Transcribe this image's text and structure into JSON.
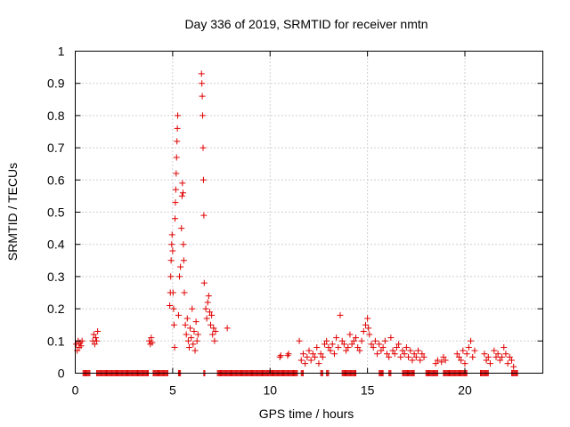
{
  "chart_data": {
    "type": "scatter",
    "title": "Day 336 of 2019, SRMTID for receiver nmtn",
    "xlabel": "GPS time / hours",
    "ylabel": "SRMTID / TECUs",
    "xlim": [
      0,
      24
    ],
    "ylim": [
      0,
      1
    ],
    "xticks": [
      "0",
      "5",
      "10",
      "15",
      "20"
    ],
    "xtick_values": [
      0,
      5,
      10,
      15,
      20
    ],
    "yticks": [
      "0",
      "0.1",
      "0.2",
      "0.3",
      "0.4",
      "0.5",
      "0.6",
      "0.7",
      "0.8",
      "0.9",
      "1"
    ],
    "ytick_values": [
      0,
      0.1,
      0.2,
      0.3,
      0.4,
      0.5,
      0.6,
      0.7,
      0.8,
      0.9,
      1
    ],
    "grid": true,
    "marker": "+",
    "color": "#e00000",
    "series": [
      {
        "name": "SRMTID",
        "points": [
          [
            0.05,
            0.09
          ],
          [
            0.1,
            0.07
          ],
          [
            0.15,
            0.1
          ],
          [
            0.2,
            0.08
          ],
          [
            0.25,
            0.095
          ],
          [
            0.3,
            0.085
          ],
          [
            0.35,
            0.1
          ],
          [
            0.9,
            0.1
          ],
          [
            0.95,
            0.12
          ],
          [
            1.0,
            0.09
          ],
          [
            1.05,
            0.11
          ],
          [
            1.1,
            0.1
          ],
          [
            1.15,
            0.13
          ],
          [
            3.8,
            0.1
          ],
          [
            3.85,
            0.09
          ],
          [
            3.9,
            0.11
          ],
          [
            3.95,
            0.095
          ],
          [
            4.85,
            0.21
          ],
          [
            4.88,
            0.25
          ],
          [
            4.9,
            0.3
          ],
          [
            4.92,
            0.35
          ],
          [
            4.95,
            0.4
          ],
          [
            4.97,
            0.43
          ],
          [
            5.0,
            0.38
          ],
          [
            5.02,
            0.25
          ],
          [
            5.05,
            0.2
          ],
          [
            5.07,
            0.15
          ],
          [
            5.1,
            0.08
          ],
          [
            5.12,
            0.48
          ],
          [
            5.14,
            0.53
          ],
          [
            5.16,
            0.57
          ],
          [
            5.18,
            0.62
          ],
          [
            5.2,
            0.67
          ],
          [
            5.22,
            0.72
          ],
          [
            5.24,
            0.76
          ],
          [
            5.26,
            0.8
          ],
          [
            5.3,
            0.18
          ],
          [
            5.35,
            0.3
          ],
          [
            5.4,
            0.33
          ],
          [
            5.45,
            0.45
          ],
          [
            5.48,
            0.55
          ],
          [
            5.5,
            0.59
          ],
          [
            5.53,
            0.56
          ],
          [
            5.55,
            0.4
          ],
          [
            5.57,
            0.35
          ],
          [
            5.6,
            0.25
          ],
          [
            5.65,
            0.15
          ],
          [
            5.7,
            0.12
          ],
          [
            5.75,
            0.17
          ],
          [
            5.8,
            0.1
          ],
          [
            5.85,
            0.08
          ],
          [
            5.9,
            0.14
          ],
          [
            5.95,
            0.11
          ],
          [
            6.0,
            0.2
          ],
          [
            6.05,
            0.09
          ],
          [
            6.1,
            0.13
          ],
          [
            6.15,
            0.07
          ],
          [
            6.2,
            0.16
          ],
          [
            6.25,
            0.1
          ],
          [
            6.3,
            0.12
          ],
          [
            6.48,
            0.93
          ],
          [
            6.5,
            0.9
          ],
          [
            6.52,
            0.86
          ],
          [
            6.54,
            0.8
          ],
          [
            6.56,
            0.7
          ],
          [
            6.58,
            0.6
          ],
          [
            6.6,
            0.49
          ],
          [
            6.62,
            0.28
          ],
          [
            6.7,
            0.2
          ],
          [
            6.75,
            0.17
          ],
          [
            6.8,
            0.22
          ],
          [
            6.85,
            0.24
          ],
          [
            6.9,
            0.19
          ],
          [
            6.95,
            0.15
          ],
          [
            7.0,
            0.18
          ],
          [
            7.05,
            0.12
          ],
          [
            7.1,
            0.14
          ],
          [
            7.15,
            0.1
          ],
          [
            7.2,
            0.13
          ],
          [
            7.8,
            0.14
          ],
          [
            10.5,
            0.05
          ],
          [
            10.55,
            0.055
          ],
          [
            10.9,
            0.055
          ],
          [
            10.95,
            0.06
          ],
          [
            11.5,
            0.1
          ],
          [
            11.6,
            0.04
          ],
          [
            11.7,
            0.06
          ],
          [
            11.8,
            0.03
          ],
          [
            11.9,
            0.05
          ],
          [
            12.0,
            0.07
          ],
          [
            12.1,
            0.04
          ],
          [
            12.2,
            0.06
          ],
          [
            12.3,
            0.05
          ],
          [
            12.4,
            0.08
          ],
          [
            12.5,
            0.03
          ],
          [
            12.6,
            0.06
          ],
          [
            12.7,
            0.05
          ],
          [
            12.8,
            0.09
          ],
          [
            12.9,
            0.1
          ],
          [
            13.0,
            0.08
          ],
          [
            13.1,
            0.07
          ],
          [
            13.2,
            0.09
          ],
          [
            13.3,
            0.06
          ],
          [
            13.4,
            0.11
          ],
          [
            13.5,
            0.08
          ],
          [
            13.6,
            0.18
          ],
          [
            13.7,
            0.1
          ],
          [
            13.8,
            0.09
          ],
          [
            13.9,
            0.07
          ],
          [
            14.0,
            0.08
          ],
          [
            14.1,
            0.12
          ],
          [
            14.2,
            0.09
          ],
          [
            14.3,
            0.1
          ],
          [
            14.4,
            0.11
          ],
          [
            14.5,
            0.08
          ],
          [
            14.6,
            0.07
          ],
          [
            14.7,
            0.1
          ],
          [
            14.8,
            0.13
          ],
          [
            14.9,
            0.15
          ],
          [
            15.0,
            0.17
          ],
          [
            15.05,
            0.14
          ],
          [
            15.1,
            0.12
          ],
          [
            15.2,
            0.09
          ],
          [
            15.3,
            0.08
          ],
          [
            15.4,
            0.1
          ],
          [
            15.5,
            0.06
          ],
          [
            15.6,
            0.09
          ],
          [
            15.7,
            0.07
          ],
          [
            15.8,
            0.08
          ],
          [
            15.9,
            0.1
          ],
          [
            16.0,
            0.06
          ],
          [
            16.1,
            0.05
          ],
          [
            16.2,
            0.11
          ],
          [
            16.3,
            0.07
          ],
          [
            16.4,
            0.06
          ],
          [
            16.5,
            0.08
          ],
          [
            16.6,
            0.09
          ],
          [
            16.7,
            0.05
          ],
          [
            16.8,
            0.07
          ],
          [
            16.9,
            0.06
          ],
          [
            17.0,
            0.08
          ],
          [
            17.1,
            0.05
          ],
          [
            17.2,
            0.07
          ],
          [
            17.3,
            0.04
          ],
          [
            17.4,
            0.06
          ],
          [
            17.5,
            0.05
          ],
          [
            17.6,
            0.07
          ],
          [
            17.7,
            0.04
          ],
          [
            17.8,
            0.06
          ],
          [
            17.9,
            0.05
          ],
          [
            18.5,
            0.03
          ],
          [
            18.6,
            0.04
          ],
          [
            18.8,
            0.035
          ],
          [
            18.9,
            0.05
          ],
          [
            19.0,
            0.04
          ],
          [
            19.6,
            0.06
          ],
          [
            19.7,
            0.05
          ],
          [
            19.8,
            0.04
          ],
          [
            19.9,
            0.07
          ],
          [
            20.0,
            0.03
          ],
          [
            20.1,
            0.06
          ],
          [
            20.2,
            0.08
          ],
          [
            20.3,
            0.1
          ],
          [
            20.4,
            0.05
          ],
          [
            20.5,
            0.07
          ],
          [
            21.0,
            0.06
          ],
          [
            21.1,
            0.04
          ],
          [
            21.2,
            0.05
          ],
          [
            21.3,
            0.03
          ],
          [
            21.5,
            0.07
          ],
          [
            21.6,
            0.05
          ],
          [
            21.7,
            0.06
          ],
          [
            21.8,
            0.04
          ],
          [
            21.9,
            0.05
          ],
          [
            22.0,
            0.08
          ],
          [
            22.1,
            0.06
          ],
          [
            22.2,
            0.03
          ],
          [
            22.3,
            0.05
          ],
          [
            22.4,
            0.04
          ],
          [
            22.5,
            0.02
          ]
        ],
        "zero_runs": [
          [
            0.4,
            0.75
          ],
          [
            1.1,
            3.75
          ],
          [
            4.0,
            4.75
          ],
          [
            5.3,
            5.4
          ],
          [
            6.6,
            6.65
          ],
          [
            7.3,
            11.4
          ],
          [
            11.6,
            11.7
          ],
          [
            12.6,
            12.7
          ],
          [
            12.9,
            13.0
          ],
          [
            13.7,
            14.4
          ],
          [
            15.6,
            15.8
          ],
          [
            16.1,
            16.2
          ],
          [
            16.8,
            17.4
          ],
          [
            18.0,
            18.6
          ],
          [
            18.9,
            20.1
          ],
          [
            20.8,
            21.2
          ],
          [
            22.4,
            22.7
          ]
        ]
      }
    ]
  }
}
